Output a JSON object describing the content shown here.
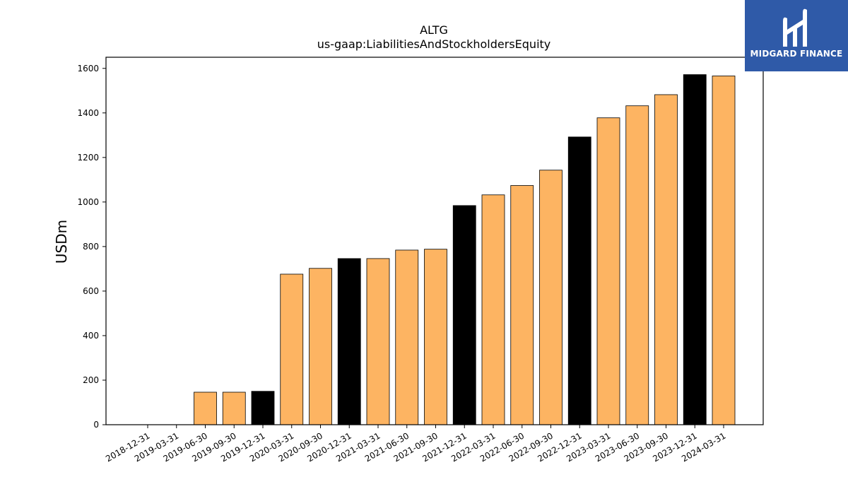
{
  "logo": {
    "text": "MIDGARD FINANCE"
  },
  "chart_data": {
    "type": "bar",
    "title": "ALTG",
    "subtitle": "us-gaap:LiabilitiesAndStockholdersEquity",
    "ylabel": "USDm",
    "xlabel": "",
    "ylim": [
      0,
      1650
    ],
    "yticks": [
      0,
      200,
      400,
      600,
      800,
      1000,
      1200,
      1400,
      1600
    ],
    "grid": false,
    "colors": {
      "quarter": "#fdb462",
      "year_end": "#000000",
      "edge": "#000000"
    },
    "categories": [
      "2018-12-31",
      "2019-03-31",
      "2019-06-30",
      "2019-09-30",
      "2019-12-31",
      "2020-03-31",
      "2020-09-30",
      "2020-12-31",
      "2021-03-31",
      "2021-06-30",
      "2021-09-30",
      "2021-12-31",
      "2022-03-31",
      "2022-06-30",
      "2022-09-30",
      "2022-12-31",
      "2023-03-31",
      "2023-06-30",
      "2023-09-30",
      "2023-12-31",
      "2024-03-31"
    ],
    "values": [
      0,
      0,
      146,
      146,
      150,
      676,
      702,
      746,
      746,
      784,
      788,
      984,
      1032,
      1074,
      1143,
      1292,
      1378,
      1432,
      1482,
      1572,
      1566
    ],
    "year_end": [
      true,
      false,
      false,
      false,
      true,
      false,
      false,
      true,
      false,
      false,
      false,
      true,
      false,
      false,
      false,
      true,
      false,
      false,
      false,
      true,
      false
    ]
  }
}
